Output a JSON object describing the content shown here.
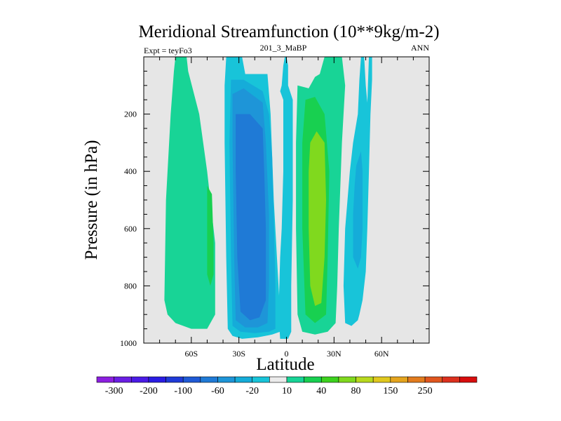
{
  "chart_data": {
    "type": "heatmap",
    "title": "Meridional Streamfunction (10**9kg/m-2)",
    "left_label": "Expt = teyFo3",
    "center_label": "201_3_MaBP",
    "right_label": "ANN",
    "xlabel": "Latitude",
    "ylabel": "Pressure (in hPa)",
    "xlim": [
      -90,
      90
    ],
    "ylim": [
      1000,
      0
    ],
    "x_ticks": [
      -60,
      -30,
      0,
      30,
      60
    ],
    "x_tick_labels": [
      "60S",
      "30S",
      "0",
      "30N",
      "60N"
    ],
    "y_ticks": [
      200,
      400,
      600,
      800,
      1000
    ],
    "y_tick_labels": [
      "200",
      "400",
      "600",
      "800",
      "1000"
    ],
    "background_color": "#e6e6e6",
    "colorbar": {
      "colors": [
        "#8c1fe0",
        "#6a1ee3",
        "#4a1be6",
        "#2a1ce3",
        "#1f3ad8",
        "#1f5ad6",
        "#1f7ad6",
        "#1e95d8",
        "#15acd9",
        "#18c4d9",
        "#ebebeb",
        "#18d496",
        "#18d050",
        "#3cd21e",
        "#80d91e",
        "#b8d91e",
        "#e0c81e",
        "#e4a41e",
        "#e27c1e",
        "#e0561e",
        "#dc301e",
        "#d80d0d"
      ],
      "tick_labels": [
        "-300",
        "-200",
        "-100",
        "-60",
        "-20",
        "10",
        "40",
        "80",
        "150",
        "250"
      ],
      "label_boundaries": [
        1,
        3,
        5,
        7,
        9,
        11,
        13,
        15,
        17,
        19
      ]
    },
    "regions": [
      {
        "name": "sh-outer-positive",
        "level": "10",
        "color": "#18d496",
        "points": [
          [
            -70,
            0
          ],
          [
            -63,
            0
          ],
          [
            -62,
            50
          ],
          [
            -55,
            200
          ],
          [
            -50,
            400
          ],
          [
            -45,
            650
          ],
          [
            -45,
            900
          ],
          [
            -50,
            950
          ],
          [
            -60,
            950
          ],
          [
            -70,
            930
          ],
          [
            -75,
            900
          ],
          [
            -77,
            850
          ],
          [
            -76,
            500
          ],
          [
            -73,
            200
          ],
          [
            -71,
            50
          ]
        ]
      },
      {
        "name": "sh-positive-core",
        "level": "40",
        "color": "#18d050",
        "points": [
          [
            -50,
            450
          ],
          [
            -47,
            480
          ],
          [
            -46,
            650
          ],
          [
            -46,
            760
          ],
          [
            -48,
            800
          ],
          [
            -50,
            760
          ],
          [
            -50,
            600
          ]
        ]
      },
      {
        "name": "sh-ferrel-outer",
        "level": "-20",
        "color": "#18c4d9",
        "points": [
          [
            -38,
            0
          ],
          [
            -28,
            0
          ],
          [
            -26,
            60
          ],
          [
            -12,
            60
          ],
          [
            -10,
            200
          ],
          [
            -8,
            500
          ],
          [
            -6,
            700
          ],
          [
            -4,
            900
          ],
          [
            -4,
            960
          ],
          [
            -9,
            970
          ],
          [
            -18,
            980
          ],
          [
            -28,
            985
          ],
          [
            -34,
            975
          ],
          [
            -37,
            950
          ],
          [
            -38,
            700
          ],
          [
            -39,
            300
          ],
          [
            -39,
            100
          ]
        ]
      },
      {
        "name": "sh-hadley-band",
        "level": "-60",
        "color": "#15acd9",
        "points": [
          [
            -35,
            80
          ],
          [
            -27,
            80
          ],
          [
            -15,
            120
          ],
          [
            -11,
            200
          ],
          [
            -9,
            350
          ],
          [
            -8,
            550
          ],
          [
            -7,
            800
          ],
          [
            -7,
            950
          ],
          [
            -11,
            960
          ],
          [
            -20,
            965
          ],
          [
            -29,
            960
          ],
          [
            -34,
            940
          ],
          [
            -35,
            700
          ],
          [
            -36,
            300
          ]
        ]
      },
      {
        "name": "sh-hadley-mid",
        "level": "-60",
        "color": "#1e95d8",
        "points": [
          [
            -34,
            130
          ],
          [
            -27,
            110
          ],
          [
            -15,
            160
          ],
          [
            -13,
            300
          ],
          [
            -11,
            550
          ],
          [
            -11,
            800
          ],
          [
            -12,
            930
          ],
          [
            -18,
            945
          ],
          [
            -26,
            945
          ],
          [
            -32,
            920
          ],
          [
            -33,
            700
          ],
          [
            -34,
            300
          ]
        ]
      },
      {
        "name": "sh-hadley-core",
        "level": "-100",
        "color": "#1f7ad6",
        "points": [
          [
            -32,
            200
          ],
          [
            -23,
            200
          ],
          [
            -15,
            250
          ],
          [
            -14,
            400
          ],
          [
            -13,
            600
          ],
          [
            -13,
            850
          ],
          [
            -17,
            910
          ],
          [
            -23,
            920
          ],
          [
            -29,
            890
          ],
          [
            -31,
            700
          ],
          [
            -32,
            400
          ]
        ]
      },
      {
        "name": "equatorial-negative",
        "level": "-20",
        "color": "#18c4d9",
        "points": [
          [
            -1,
            0
          ],
          [
            0,
            0
          ],
          [
            1,
            30
          ],
          [
            1,
            100
          ],
          [
            4,
            150
          ],
          [
            4,
            500
          ],
          [
            3,
            800
          ],
          [
            3,
            960
          ],
          [
            1,
            985
          ],
          [
            -4,
            985
          ],
          [
            -5,
            900
          ],
          [
            -4,
            700
          ],
          [
            -3,
            600
          ],
          [
            -2,
            400
          ],
          [
            -2,
            150
          ],
          [
            -4,
            120
          ],
          [
            -3,
            100
          ],
          [
            -2,
            30
          ]
        ]
      },
      {
        "name": "nh-hadley-outer",
        "level": "10",
        "color": "#18d496",
        "points": [
          [
            7,
            100
          ],
          [
            14,
            110
          ],
          [
            18,
            70
          ],
          [
            21,
            60
          ],
          [
            24,
            0
          ],
          [
            35,
            0
          ],
          [
            37,
            100
          ],
          [
            36,
            200
          ],
          [
            35,
            300
          ],
          [
            33,
            600
          ],
          [
            32,
            800
          ],
          [
            31,
            930
          ],
          [
            26,
            960
          ],
          [
            18,
            970
          ],
          [
            10,
            960
          ],
          [
            7,
            900
          ],
          [
            6,
            600
          ],
          [
            6,
            300
          ]
        ]
      },
      {
        "name": "nh-hadley-mid",
        "level": "40",
        "color": "#18d050",
        "points": [
          [
            12,
            150
          ],
          [
            18,
            140
          ],
          [
            24,
            200
          ],
          [
            27,
            400
          ],
          [
            26,
            700
          ],
          [
            25,
            900
          ],
          [
            18,
            930
          ],
          [
            12,
            900
          ],
          [
            10,
            600
          ],
          [
            10,
            300
          ]
        ]
      },
      {
        "name": "nh-hadley-core",
        "level": "80",
        "color": "#80d91e",
        "points": [
          [
            15,
            300
          ],
          [
            19,
            260
          ],
          [
            24,
            300
          ],
          [
            25,
            500
          ],
          [
            24,
            700
          ],
          [
            22,
            860
          ],
          [
            18,
            870
          ],
          [
            15,
            800
          ],
          [
            14,
            600
          ],
          [
            14,
            400
          ]
        ]
      },
      {
        "name": "nh-ferrel-outer",
        "level": "-20",
        "color": "#18c4d9",
        "points": [
          [
            47,
            0
          ],
          [
            49,
            0
          ],
          [
            50,
            100
          ],
          [
            51,
            160
          ],
          [
            52,
            0
          ],
          [
            54,
            0
          ],
          [
            54,
            80
          ],
          [
            53,
            200
          ],
          [
            52,
            400
          ],
          [
            51,
            600
          ],
          [
            50,
            750
          ],
          [
            48,
            850
          ],
          [
            46,
            900
          ],
          [
            45,
            920
          ],
          [
            41,
            940
          ],
          [
            37,
            930
          ],
          [
            36,
            800
          ],
          [
            37,
            600
          ],
          [
            40,
            400
          ],
          [
            42,
            300
          ],
          [
            45,
            200
          ],
          [
            46,
            80
          ]
        ]
      },
      {
        "name": "nh-ferrel-inner",
        "level": "-60",
        "color": "#15acd9",
        "points": [
          [
            44,
            380
          ],
          [
            47,
            330
          ],
          [
            48,
            400
          ],
          [
            48,
            600
          ],
          [
            47,
            700
          ],
          [
            45,
            740
          ],
          [
            42,
            700
          ],
          [
            42,
            550
          ],
          [
            43,
            450
          ]
        ]
      }
    ]
  }
}
